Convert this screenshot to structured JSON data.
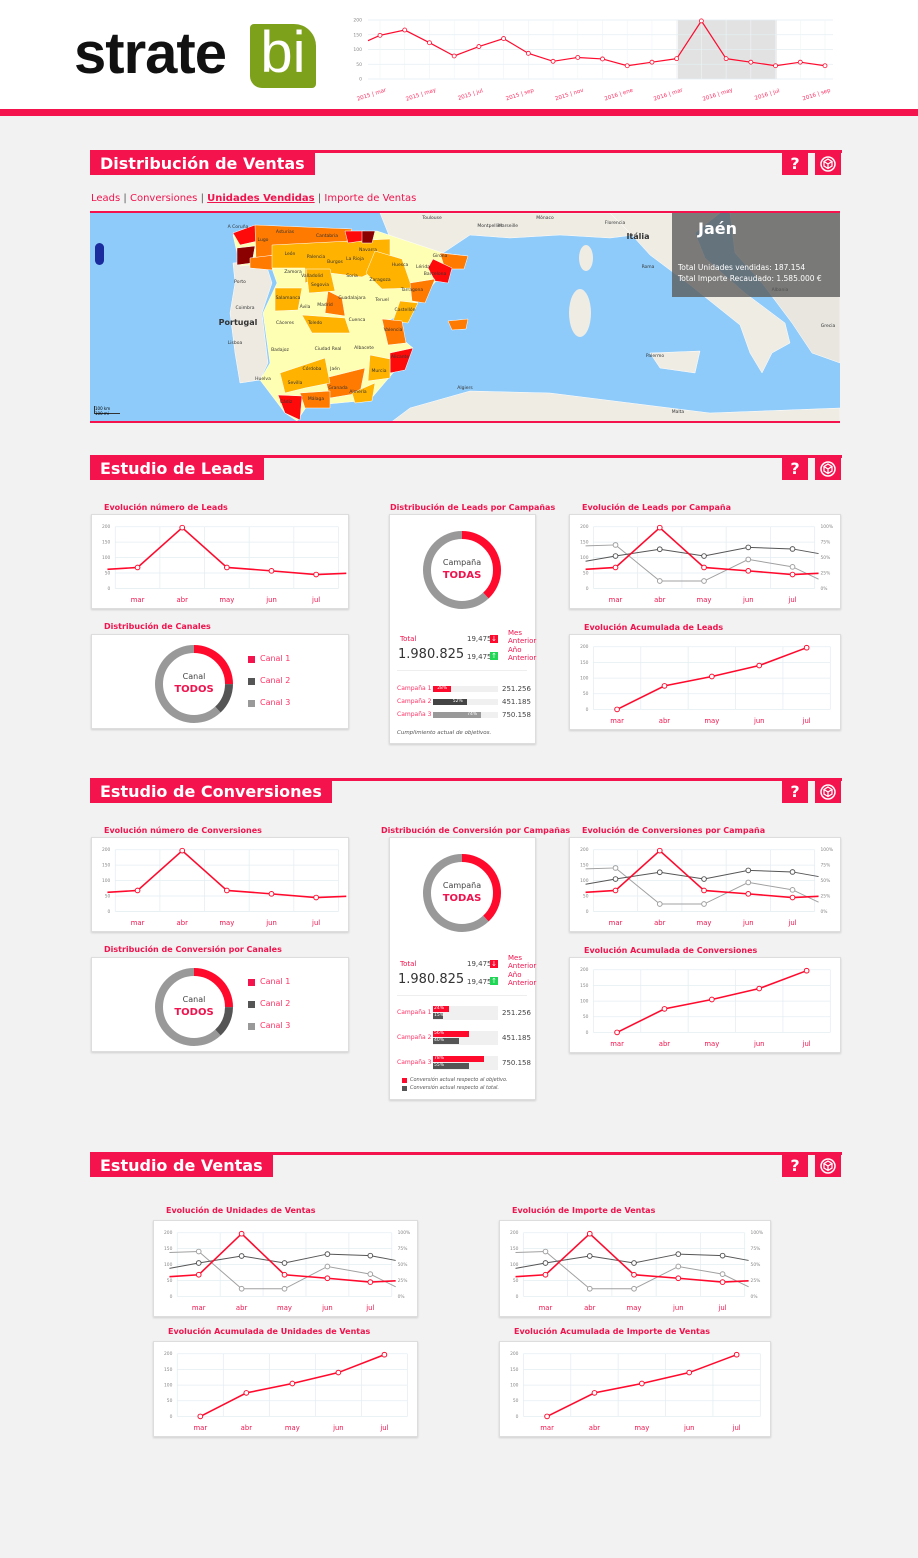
{
  "colors": {
    "accent": "#f5134e",
    "line": "#ff0a2d",
    "dark_series": "#555555",
    "light_series": "#a0a0a0",
    "logo_green": "#7ea11b",
    "up": "#1fd655"
  },
  "logo": {
    "text": "strate",
    "badge": "bi"
  },
  "distribucion": {
    "title": "Distribución de Ventas",
    "help": "?",
    "cube_icon": "cube-icon",
    "tabs": [
      "Leads",
      "Conversiones",
      "Unidades Vendidas",
      "Importe de Ventas"
    ],
    "active_tab": "Unidades Vendidas",
    "map": {
      "tooltip": {
        "title": "Jaén",
        "units_label": "Total Unidades vendidas:",
        "units": "187.154",
        "amount_label": "Total Importe Recaudado:",
        "amount": "1.585.000 €"
      },
      "labels": [
        "A Coruña",
        "Lugo",
        "Asturias",
        "Cantabria",
        "León",
        "Palencia",
        "Burgos",
        "La Rioja",
        "Navarra",
        "Huesca",
        "Lérida",
        "Girona",
        "Barcelona",
        "Zamora",
        "Valladolid",
        "Segovia",
        "Soria",
        "Zaragoza",
        "Tarragona",
        "Salamanca",
        "Ávila",
        "Madrid",
        "Guadalajara",
        "Teruel",
        "Castellón",
        "Cáceres",
        "Toledo",
        "Cuenca",
        "Valencia",
        "Badajoz",
        "Ciudad Real",
        "Albacete",
        "Alicante",
        "Córdoba",
        "Jaén",
        "Murcia",
        "Huelva",
        "Sevilla",
        "Granada",
        "Almería",
        "Málaga",
        "Cádiz",
        "Portugal",
        "Porto",
        "Coimbra",
        "Lisboa",
        "Toulouse",
        "Montpellier",
        "Marseille",
        "Mónaco",
        "Florencia",
        "Itália",
        "Roma",
        "Palermo",
        "Albania",
        "Grecia",
        "Algiers",
        "Malta"
      ],
      "scale": [
        "100 km",
        "100 mi"
      ]
    }
  },
  "leads": {
    "title": "Estudio de Leads",
    "help": "?",
    "evol_title": "Evolución número de Leads",
    "campaign_dist_title": "Distribución de Leads por  Campañas",
    "evol_campaign_title": "Evolución de Leads por Campaña",
    "channels_title": "Distribución de Canales",
    "acum_title": "Evolución Acumulada de Leads",
    "campaign_donut": {
      "label": "Campaña",
      "value": "TODAS",
      "red_share": 0.38
    },
    "channel_donut": {
      "label": "Canal",
      "value": "TODOS",
      "shares": [
        0.25,
        0.13,
        0.62
      ],
      "legend": [
        "Canal 1",
        "Canal 2",
        "Canal 3"
      ]
    },
    "total_label": "Total",
    "total": "1.980.825",
    "compare": [
      {
        "value": "19,475",
        "dir": "down",
        "label1": "Mes",
        "label2": "Anterior"
      },
      {
        "value": "19,475",
        "dir": "up",
        "label1": "Año",
        "label2": "Anterior"
      }
    ],
    "campaigns": [
      {
        "name": "Campaña 1",
        "pct": 28,
        "pct_label": "28%",
        "value": "251.256"
      },
      {
        "name": "Campaña 2",
        "pct": 52,
        "pct_label": "52%",
        "value": "451.185"
      },
      {
        "name": "Campaña 3",
        "pct": 74,
        "pct_label": "74%",
        "value": "750.158"
      }
    ],
    "footnote": "Cumplimiento actual de objetivos."
  },
  "conversiones": {
    "title": "Estudio de Conversiones",
    "help": "?",
    "evol_title": "Evolución número de Conversiones",
    "campaign_dist_title": "Distribución de Conversión por Campañas",
    "evol_campaign_title": "Evolución de Conversiones por Campaña",
    "channels_title": "Distribución de Conversión por Canales",
    "acum_title": "Evolución Acumulada de Conversiones",
    "campaign_donut": {
      "label": "Campaña",
      "value": "TODAS",
      "red_share": 0.38
    },
    "channel_donut": {
      "label": "Canal",
      "value": "TODOS",
      "shares": [
        0.25,
        0.13,
        0.62
      ],
      "legend": [
        "Canal 1",
        "Canal 2",
        "Canal 3"
      ]
    },
    "total_label": "Total",
    "total": "1.980.825",
    "compare": [
      {
        "value": "19,475",
        "dir": "down",
        "label1": "Mes",
        "label2": "Anterior"
      },
      {
        "value": "19,475",
        "dir": "up",
        "label1": "Año",
        "label2": "Anterior"
      }
    ],
    "campaigns": [
      {
        "name": "Campaña 1",
        "objective": 24,
        "objective_label": "24%",
        "total": 15,
        "total_label": "15%",
        "value": "251.256"
      },
      {
        "name": "Campaña 2",
        "objective": 56,
        "objective_label": "56%",
        "total": 40,
        "total_label": "40%",
        "value": "451.185"
      },
      {
        "name": "Campaña 3",
        "objective": 78,
        "objective_label": "78%",
        "total": 55,
        "total_label": "55%",
        "value": "750.158"
      }
    ],
    "legend": [
      "Conversión actual respecto al objetivo.",
      "Conversión actual respecto al total."
    ]
  },
  "ventas": {
    "title": "Estudio de Ventas",
    "help": "?",
    "units_title": "Evolución de Unidades de Ventas",
    "amount_title": "Evolución de Importe de Ventas",
    "acum_units_title": "Evolución Acumulada de Unidades de Ventas",
    "acum_amount_title": "Evolución Acumulada de Importe de Ventas"
  },
  "chart_data": [
    {
      "id": "timeline",
      "type": "line",
      "x_labels": [
        "2015 | mar",
        "2015 | may",
        "2015 | jul",
        "2015 | sep",
        "2015 | nov",
        "2016 | ene",
        "2016 | mar",
        "2016 | may",
        "2016 | jul",
        "2016 | sep"
      ],
      "months": [
        "2015 | mar",
        "2015 | abr",
        "2015 | may",
        "2015 | jun",
        "2015 | jul",
        "2015 | ago",
        "2015 | sep",
        "2015 | oct",
        "2015 | nov",
        "2015 | dic",
        "2016 | ene",
        "2016 | feb",
        "2016 | mar",
        "2016 | abr",
        "2016 | may",
        "2016 | jun",
        "2016 | jul",
        "2016 | ago",
        "2016 | sep"
      ],
      "values": [
        148,
        166,
        123,
        78,
        110,
        137,
        87,
        60,
        73,
        68,
        45,
        57,
        69,
        197,
        69,
        57,
        45,
        57,
        45
      ],
      "lead_in": 130,
      "highlight": [
        "2016 | mar",
        "2016 | jul"
      ],
      "ylim": [
        0,
        200
      ],
      "yticks": [
        0,
        50,
        100,
        150,
        200
      ]
    },
    {
      "id": "leads-evol",
      "type": "line",
      "categories": [
        "mar",
        "abr",
        "may",
        "jun",
        "jul"
      ],
      "ylim": [
        0,
        200
      ],
      "yticks": [
        0,
        50,
        100,
        150,
        200
      ],
      "series": [
        {
          "values": [
            68,
            197,
            68,
            57,
            45
          ],
          "edges": [
            62,
            49
          ],
          "color": "#ff0a2d"
        }
      ]
    },
    {
      "id": "leads-campaign",
      "type": "line",
      "categories": [
        "mar",
        "abr",
        "may",
        "jun",
        "jul"
      ],
      "ylim": [
        0,
        200
      ],
      "yticks": [
        0,
        50,
        100,
        150,
        200
      ],
      "y2ticks": [
        "0%",
        "25%",
        "50%",
        "75%",
        "100%"
      ],
      "series": [
        {
          "values": [
            141,
            24,
            24,
            94,
            70
          ],
          "edges": [
            138,
            30
          ],
          "color": "#a0a0a0"
        },
        {
          "values": [
            105,
            127,
            105,
            133,
            128
          ],
          "edges": [
            88,
            113
          ],
          "color": "#555555"
        },
        {
          "values": [
            68,
            197,
            68,
            57,
            45
          ],
          "edges": [
            62,
            49
          ],
          "color": "#ff0a2d"
        }
      ]
    },
    {
      "id": "leads-acum",
      "type": "line",
      "categories": [
        "mar",
        "abr",
        "may",
        "jun",
        "jul"
      ],
      "ylim": [
        0,
        200
      ],
      "yticks": [
        0,
        50,
        100,
        150,
        200
      ],
      "series": [
        {
          "values": [
            0,
            75,
            105,
            140,
            197
          ],
          "color": "#ff0a2d"
        }
      ]
    },
    {
      "id": "conv-evol",
      "type": "line",
      "categories": [
        "mar",
        "abr",
        "may",
        "jun",
        "jul"
      ],
      "ylim": [
        0,
        200
      ],
      "yticks": [
        0,
        50,
        100,
        150,
        200
      ],
      "series": [
        {
          "values": [
            68,
            197,
            68,
            57,
            45
          ],
          "edges": [
            62,
            49
          ],
          "color": "#ff0a2d"
        }
      ]
    },
    {
      "id": "conv-campaign",
      "type": "line",
      "categories": [
        "mar",
        "abr",
        "may",
        "jun",
        "jul"
      ],
      "ylim": [
        0,
        200
      ],
      "yticks": [
        0,
        50,
        100,
        150,
        200
      ],
      "y2ticks": [
        "0%",
        "25%",
        "50%",
        "75%",
        "100%"
      ],
      "series": [
        {
          "values": [
            141,
            24,
            24,
            94,
            70
          ],
          "edges": [
            138,
            30
          ],
          "color": "#a0a0a0"
        },
        {
          "values": [
            105,
            127,
            105,
            133,
            128
          ],
          "edges": [
            88,
            113
          ],
          "color": "#555555"
        },
        {
          "values": [
            68,
            197,
            68,
            57,
            45
          ],
          "edges": [
            62,
            49
          ],
          "color": "#ff0a2d"
        }
      ]
    },
    {
      "id": "conv-acum",
      "type": "line",
      "categories": [
        "mar",
        "abr",
        "may",
        "jun",
        "jul"
      ],
      "ylim": [
        0,
        200
      ],
      "yticks": [
        0,
        50,
        100,
        150,
        200
      ],
      "series": [
        {
          "values": [
            0,
            75,
            105,
            140,
            197
          ],
          "color": "#ff0a2d"
        }
      ]
    },
    {
      "id": "ventas-units",
      "type": "line",
      "categories": [
        "mar",
        "abr",
        "may",
        "jun",
        "jul"
      ],
      "ylim": [
        0,
        200
      ],
      "yticks": [
        0,
        50,
        100,
        150,
        200
      ],
      "y2ticks": [
        "0%",
        "25%",
        "50%",
        "75%",
        "100%"
      ],
      "series": [
        {
          "values": [
            141,
            24,
            24,
            94,
            70
          ],
          "edges": [
            138,
            30
          ],
          "color": "#a0a0a0"
        },
        {
          "values": [
            105,
            127,
            105,
            133,
            128
          ],
          "edges": [
            88,
            113
          ],
          "color": "#555555"
        },
        {
          "values": [
            68,
            197,
            68,
            57,
            45
          ],
          "edges": [
            62,
            49
          ],
          "color": "#ff0a2d"
        }
      ]
    },
    {
      "id": "ventas-amount",
      "type": "line",
      "categories": [
        "mar",
        "abr",
        "may",
        "jun",
        "jul"
      ],
      "ylim": [
        0,
        200
      ],
      "yticks": [
        0,
        50,
        100,
        150,
        200
      ],
      "y2ticks": [
        "0%",
        "25%",
        "50%",
        "75%",
        "100%"
      ],
      "series": [
        {
          "values": [
            141,
            24,
            24,
            94,
            70
          ],
          "edges": [
            138,
            30
          ],
          "color": "#a0a0a0"
        },
        {
          "values": [
            105,
            127,
            105,
            133,
            128
          ],
          "edges": [
            88,
            113
          ],
          "color": "#555555"
        },
        {
          "values": [
            68,
            197,
            68,
            57,
            45
          ],
          "edges": [
            62,
            49
          ],
          "color": "#ff0a2d"
        }
      ]
    },
    {
      "id": "ventas-acum-units",
      "type": "line",
      "categories": [
        "mar",
        "abr",
        "may",
        "jun",
        "jul"
      ],
      "ylim": [
        0,
        200
      ],
      "yticks": [
        0,
        50,
        100,
        150,
        200
      ],
      "series": [
        {
          "values": [
            0,
            75,
            105,
            140,
            197
          ],
          "color": "#ff0a2d"
        }
      ]
    },
    {
      "id": "ventas-acum-amount",
      "type": "line",
      "categories": [
        "mar",
        "abr",
        "may",
        "jun",
        "jul"
      ],
      "ylim": [
        0,
        200
      ],
      "yticks": [
        0,
        50,
        100,
        150,
        200
      ],
      "series": [
        {
          "values": [
            0,
            75,
            105,
            140,
            197
          ],
          "color": "#ff0a2d"
        }
      ]
    }
  ]
}
